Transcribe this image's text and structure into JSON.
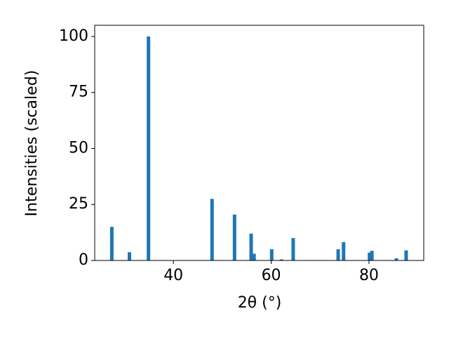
{
  "chart_data": {
    "type": "bar",
    "x_label": "2θ (°)",
    "y_label": "Intensities (scaled)",
    "color": "#1f77b4",
    "x": [
      27.4,
      31.0,
      34.9,
      47.9,
      52.5,
      55.9,
      56.5,
      60.1,
      62.1,
      64.5,
      73.7,
      74.8,
      80.1,
      80.6,
      85.6,
      87.6
    ],
    "values": [
      15,
      3.7,
      100,
      27.5,
      20.5,
      12,
      3,
      5,
      0.5,
      10,
      5,
      8.2,
      3.5,
      4.3,
      1,
      4.5
    ],
    "xlim": [
      23.9,
      91.2
    ],
    "ylim": [
      0,
      105
    ],
    "xticks": [
      40,
      60,
      80
    ],
    "yticks": [
      0,
      25,
      50,
      75,
      100
    ]
  }
}
